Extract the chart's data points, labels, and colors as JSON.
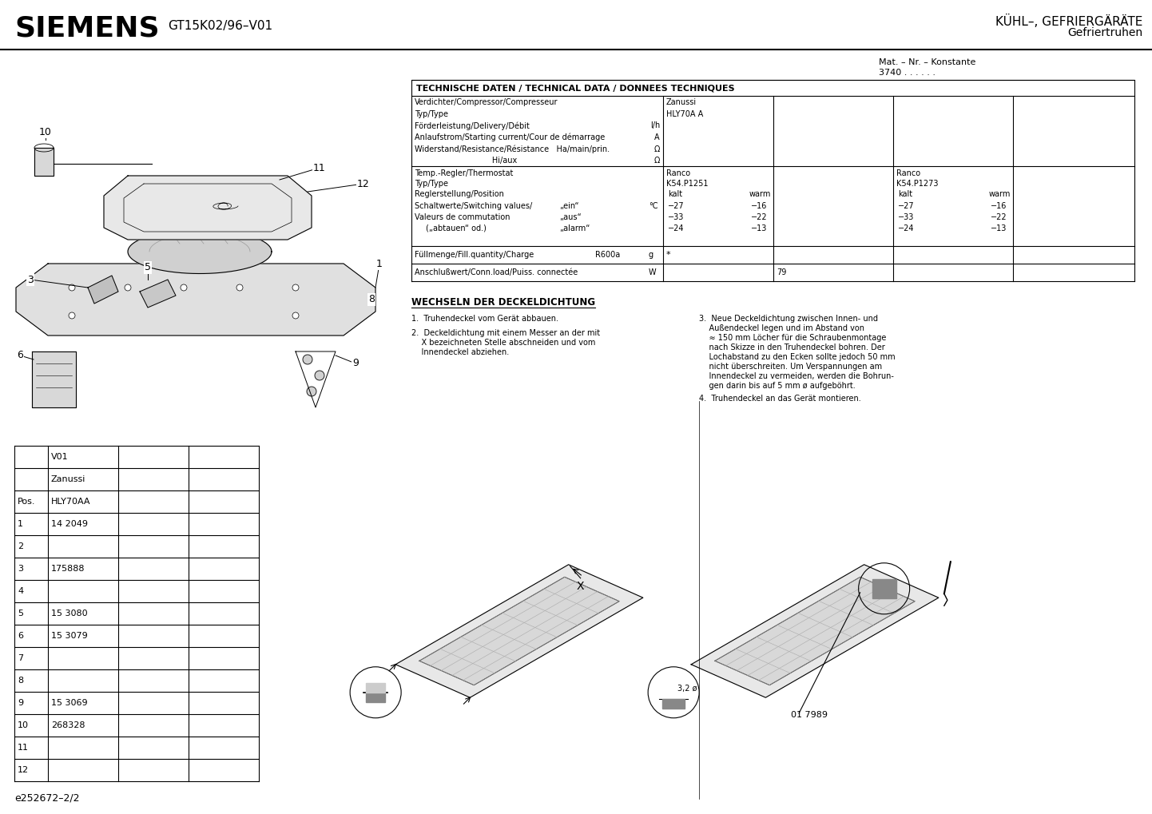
{
  "title_left": "SIEMENS",
  "title_center": "GT15K02/96–V01",
  "title_right_line1": "KÜHL–, GEFRIERGäRÄTE",
  "title_right_line2": "Gefriertruhen",
  "mat_nr": "Mat. – Nr. – Konstante",
  "mat_nr_val": "3740 . . . . . .",
  "tech_header": "TECHNISCHE DATEN / TECHNICAL DATA / DONNEES TECHNIQUES",
  "footer_text": "e252672–2/2",
  "bg_color": "#ffffff"
}
